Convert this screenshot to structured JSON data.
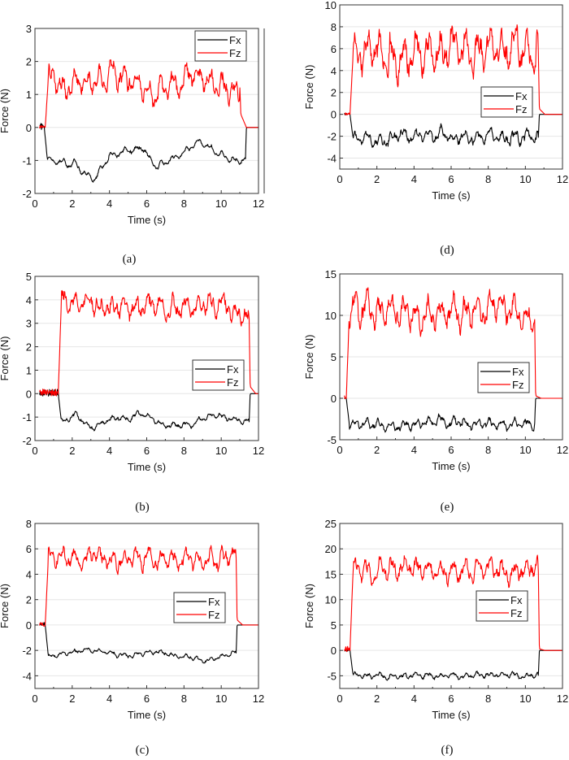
{
  "figure": {
    "colors": {
      "Fx": "#000000",
      "Fz": "#ff0000",
      "grid": "#e6e6e6",
      "frame": "#333333"
    }
  },
  "chart_data": [
    {
      "id": "a",
      "caption": "(a)",
      "type": "line",
      "xlabel": "Time (s)",
      "ylabel": "Force (N)",
      "xlim": [
        0,
        12
      ],
      "ylim": [
        -2,
        3
      ],
      "xticks": [
        0,
        2,
        4,
        6,
        8,
        10,
        12
      ],
      "yticks": [
        -2,
        -1,
        0,
        1,
        2,
        3
      ],
      "grid": true,
      "legend": "top-right",
      "series": [
        {
          "name": "Fx",
          "color": "#000000",
          "start": 0.55,
          "end": 11.3,
          "mean_profile": [
            [
              0.8,
              -1.0
            ],
            [
              2.0,
              -1.1
            ],
            [
              3.2,
              -1.55
            ],
            [
              4.0,
              -0.85
            ],
            [
              5.0,
              -0.7
            ],
            [
              5.8,
              -0.65
            ],
            [
              6.5,
              -1.2
            ],
            [
              7.5,
              -0.95
            ],
            [
              8.8,
              -0.4
            ],
            [
              9.5,
              -0.65
            ],
            [
              10.3,
              -0.9
            ],
            [
              10.9,
              -0.95
            ]
          ],
          "noise": 0.12,
          "pre": 0.1
        },
        {
          "name": "Fz",
          "color": "#ff0000",
          "start": 0.6,
          "end": 11.0,
          "mean_profile": [
            [
              0.9,
              1.5
            ],
            [
              2.0,
              1.3
            ],
            [
              3.0,
              1.3
            ],
            [
              4.4,
              1.6
            ],
            [
              5.5,
              1.3
            ],
            [
              6.5,
              1.1
            ],
            [
              8.5,
              1.5
            ],
            [
              10.0,
              1.3
            ],
            [
              10.9,
              1.2
            ]
          ],
          "noise": 0.45,
          "pre": 0.05,
          "tail": 0.4
        }
      ]
    },
    {
      "id": "d",
      "caption": "(d)",
      "type": "line",
      "xlabel": "Time (s)",
      "ylabel": "Force (N)",
      "xlim": [
        0,
        12
      ],
      "ylim": [
        -5,
        10
      ],
      "xticks": [
        0,
        2,
        4,
        6,
        8,
        10,
        12
      ],
      "yticks": [
        -4,
        -2,
        0,
        2,
        4,
        6,
        8,
        10
      ],
      "grid": true,
      "legend": "center-right",
      "series": [
        {
          "name": "Fx",
          "color": "#000000",
          "start": 0.6,
          "end": 10.7,
          "mean_profile": [
            [
              0.8,
              -2.2
            ],
            [
              5.0,
              -2.0
            ],
            [
              10.6,
              -2.1
            ]
          ],
          "noise": 0.7,
          "pre": 0.1
        },
        {
          "name": "Fz",
          "color": "#ff0000",
          "start": 0.6,
          "end": 10.7,
          "mean_profile": [
            [
              0.8,
              5.5
            ],
            [
              5.0,
              5.8
            ],
            [
              10.6,
              5.6
            ]
          ],
          "noise": 2.2,
          "pre": 0.1,
          "tail": 0.5
        }
      ]
    },
    {
      "id": "b",
      "caption": "(b)",
      "type": "line",
      "xlabel": "Time (s)",
      "ylabel": "Force (N)",
      "xlim": [
        0,
        12
      ],
      "ylim": [
        -2,
        5
      ],
      "xticks": [
        0,
        2,
        4,
        6,
        8,
        10,
        12
      ],
      "yticks": [
        -2,
        -1,
        0,
        1,
        2,
        3,
        4,
        5
      ],
      "grid": true,
      "legend": "center-right",
      "series": [
        {
          "name": "Fx",
          "color": "#000000",
          "start": 1.3,
          "end": 11.5,
          "mean_profile": [
            [
              1.5,
              -1.2
            ],
            [
              2.2,
              -0.9
            ],
            [
              3.0,
              -1.5
            ],
            [
              4.0,
              -1.1
            ],
            [
              5.0,
              -1.0
            ],
            [
              5.7,
              -0.8
            ],
            [
              7.0,
              -1.35
            ],
            [
              8.5,
              -1.3
            ],
            [
              9.5,
              -0.9
            ],
            [
              11.3,
              -1.2
            ]
          ],
          "noise": 0.15,
          "pre": 0.15
        },
        {
          "name": "Fz",
          "color": "#ff0000",
          "start": 1.3,
          "end": 11.5,
          "mean_profile": [
            [
              1.6,
              4.0
            ],
            [
              3.0,
              3.6
            ],
            [
              5.5,
              3.8
            ],
            [
              8.0,
              3.6
            ],
            [
              10.0,
              3.8
            ],
            [
              11.3,
              3.2
            ]
          ],
          "noise": 0.55,
          "pre": 0.15,
          "tail": 0.3
        }
      ]
    },
    {
      "id": "e",
      "caption": "(e)",
      "type": "line",
      "xlabel": "Time (s)",
      "ylabel": "Force (N)",
      "xlim": [
        0,
        12
      ],
      "ylim": [
        -5,
        15
      ],
      "xticks": [
        0,
        2,
        4,
        6,
        8,
        10,
        12
      ],
      "yticks": [
        -5,
        0,
        5,
        10,
        15
      ],
      "grid": true,
      "legend": "center-right",
      "series": [
        {
          "name": "Fx",
          "color": "#000000",
          "start": 0.4,
          "end": 10.5,
          "mean_profile": [
            [
              0.6,
              -3.2
            ],
            [
              3.0,
              -3.4
            ],
            [
              5.0,
              -2.7
            ],
            [
              8.0,
              -3.1
            ],
            [
              10.4,
              -3.0
            ]
          ],
          "noise": 0.7,
          "pre": 0.1
        },
        {
          "name": "Fz",
          "color": "#ff0000",
          "start": 0.4,
          "end": 10.5,
          "mean_profile": [
            [
              0.6,
              10.5
            ],
            [
              3.0,
              10.5
            ],
            [
              6.0,
              10.5
            ],
            [
              9.0,
              10.8
            ],
            [
              10.4,
              9.5
            ]
          ],
          "noise": 2.2,
          "pre": 0.3,
          "tail": 0.3
        }
      ]
    },
    {
      "id": "c",
      "caption": "(c)",
      "type": "line",
      "xlabel": "Time (s)",
      "ylabel": "Force (N)",
      "xlim": [
        0,
        12
      ],
      "ylim": [
        -5,
        8
      ],
      "xticks": [
        0,
        2,
        4,
        6,
        8,
        10,
        12
      ],
      "yticks": [
        -4,
        -2,
        0,
        2,
        4,
        6,
        8
      ],
      "grid": true,
      "legend": "center-right",
      "series": [
        {
          "name": "Fx",
          "color": "#000000",
          "start": 0.6,
          "end": 10.8,
          "mean_profile": [
            [
              0.7,
              -2.5
            ],
            [
              2.8,
              -1.9
            ],
            [
              5.0,
              -2.4
            ],
            [
              6.5,
              -2.1
            ],
            [
              9.2,
              -2.8
            ],
            [
              10.7,
              -2.2
            ]
          ],
          "noise": 0.22,
          "pre": 0.15
        },
        {
          "name": "Fz",
          "color": "#ff0000",
          "start": 0.6,
          "end": 10.8,
          "mean_profile": [
            [
              0.7,
              5.3
            ],
            [
              5.0,
              5.3
            ],
            [
              10.7,
              5.3
            ]
          ],
          "noise": 0.9,
          "pre": 0.15,
          "tail": 0.4
        }
      ]
    },
    {
      "id": "f",
      "caption": "(f)",
      "type": "line",
      "xlabel": "Time (s)",
      "ylabel": "Force (N)",
      "xlim": [
        0,
        12
      ],
      "ylim": [
        -7.5,
        25
      ],
      "xticks": [
        0,
        2,
        4,
        6,
        8,
        10,
        12
      ],
      "yticks": [
        -5,
        0,
        5,
        10,
        15,
        20,
        25
      ],
      "grid": true,
      "legend": "center-right",
      "series": [
        {
          "name": "Fx",
          "color": "#000000",
          "start": 0.6,
          "end": 10.7,
          "mean_profile": [
            [
              0.7,
              -5.0
            ],
            [
              5.0,
              -5.0
            ],
            [
              10.6,
              -4.9
            ]
          ],
          "noise": 0.7,
          "pre": 0.2
        },
        {
          "name": "Fz",
          "color": "#ff0000",
          "start": 0.6,
          "end": 10.7,
          "mean_profile": [
            [
              0.7,
              16.0
            ],
            [
              4.0,
              16.0
            ],
            [
              7.0,
              15.3
            ],
            [
              10.6,
              15.5
            ]
          ],
          "noise": 2.6,
          "pre": 0.6,
          "tail": 0.3
        }
      ]
    }
  ]
}
